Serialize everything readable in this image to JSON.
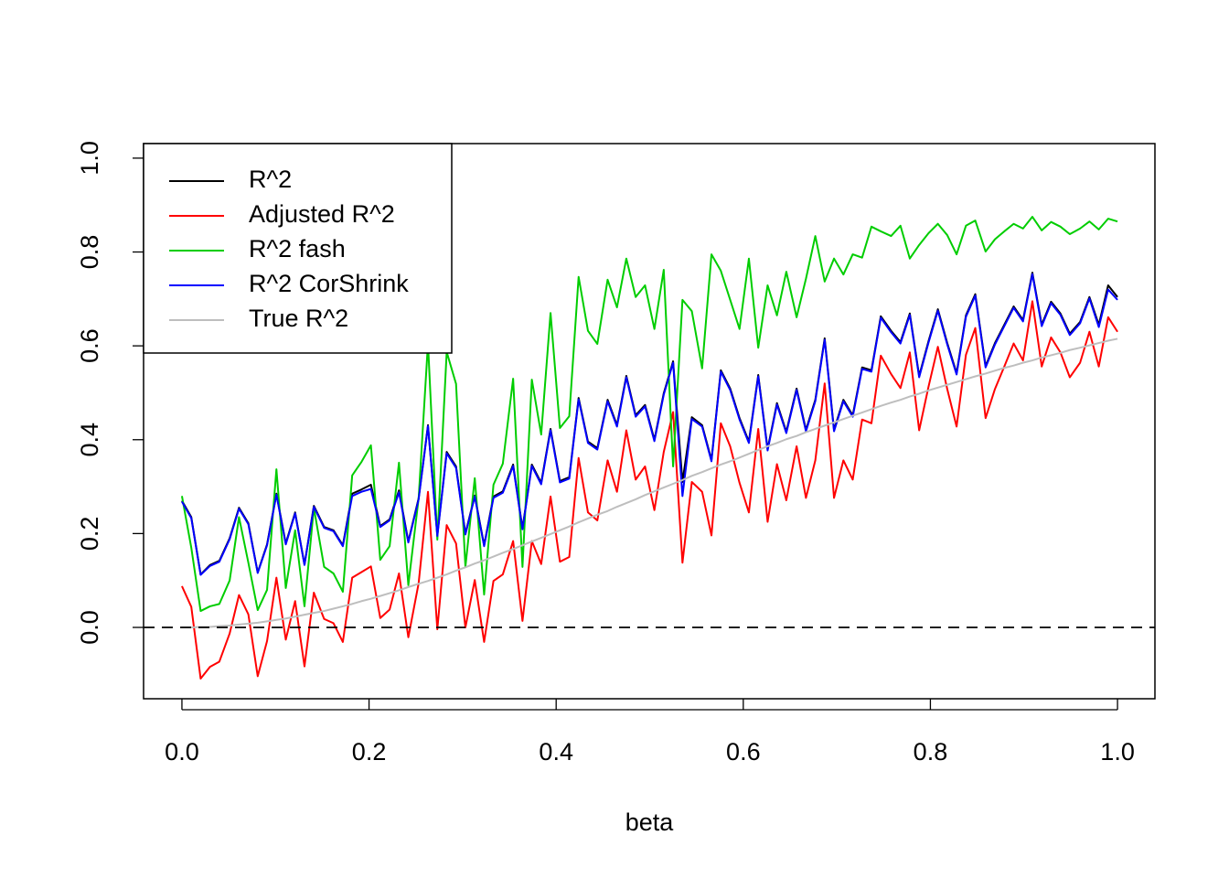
{
  "chart_data": {
    "type": "line",
    "xlabel": "beta",
    "x": [
      0,
      0.01,
      0.02,
      0.03,
      0.04,
      0.051,
      0.061,
      0.071,
      0.081,
      0.091,
      0.101,
      0.111,
      0.121,
      0.131,
      0.141,
      0.152,
      0.162,
      0.172,
      0.182,
      0.192,
      0.202,
      0.212,
      0.222,
      0.232,
      0.242,
      0.253,
      0.263,
      0.273,
      0.283,
      0.293,
      0.303,
      0.313,
      0.323,
      0.333,
      0.343,
      0.354,
      0.364,
      0.374,
      0.384,
      0.394,
      0.404,
      0.414,
      0.424,
      0.434,
      0.444,
      0.455,
      0.465,
      0.475,
      0.485,
      0.495,
      0.505,
      0.515,
      0.525,
      0.535,
      0.545,
      0.556,
      0.566,
      0.576,
      0.586,
      0.596,
      0.606,
      0.616,
      0.626,
      0.636,
      0.646,
      0.657,
      0.667,
      0.677,
      0.687,
      0.697,
      0.707,
      0.717,
      0.727,
      0.737,
      0.747,
      0.758,
      0.768,
      0.778,
      0.788,
      0.798,
      0.808,
      0.818,
      0.828,
      0.838,
      0.848,
      0.859,
      0.869,
      0.879,
      0.889,
      0.899,
      0.909,
      0.919,
      0.929,
      0.939,
      0.949,
      0.96,
      0.97,
      0.98,
      0.99,
      1
    ],
    "series": [
      {
        "name": "R^2",
        "color": "#000000",
        "values": [
          0.27,
          0.235,
          0.113,
          0.133,
          0.142,
          0.19,
          0.255,
          0.222,
          0.117,
          0.177,
          0.285,
          0.179,
          0.245,
          0.134,
          0.259,
          0.214,
          0.207,
          0.175,
          0.285,
          0.294,
          0.304,
          0.216,
          0.23,
          0.292,
          0.183,
          0.275,
          0.431,
          0.197,
          0.374,
          0.343,
          0.2,
          0.281,
          0.175,
          0.279,
          0.29,
          0.347,
          0.211,
          0.347,
          0.308,
          0.423,
          0.312,
          0.32,
          0.489,
          0.396,
          0.382,
          0.485,
          0.431,
          0.536,
          0.452,
          0.474,
          0.4,
          0.499,
          0.567,
          0.31,
          0.448,
          0.431,
          0.357,
          0.548,
          0.509,
          0.446,
          0.396,
          0.538,
          0.38,
          0.478,
          0.417,
          0.509,
          0.421,
          0.485,
          0.616,
          0.421,
          0.485,
          0.452,
          0.554,
          0.548,
          0.663,
          0.632,
          0.608,
          0.669,
          0.536,
          0.61,
          0.678,
          0.606,
          0.542,
          0.665,
          0.71,
          0.557,
          0.606,
          0.645,
          0.684,
          0.655,
          0.756,
          0.645,
          0.694,
          0.669,
          0.626,
          0.651,
          0.704,
          0.645,
          0.729,
          0.704
        ]
      },
      {
        "name": "Adjusted R^2",
        "color": "#ff0000",
        "values": [
          0.088,
          0.044,
          -0.109,
          -0.084,
          -0.073,
          -0.013,
          0.069,
          0.028,
          -0.104,
          -0.029,
          0.106,
          -0.026,
          0.056,
          -0.083,
          0.074,
          0.018,
          0.009,
          -0.031,
          0.106,
          0.118,
          0.13,
          0.02,
          0.038,
          0.115,
          -0.021,
          0.094,
          0.289,
          -0.004,
          0.218,
          0.179,
          0,
          0.101,
          -0.031,
          0.099,
          0.113,
          0.184,
          0.014,
          0.184,
          0.135,
          0.279,
          0.14,
          0.15,
          0.361,
          0.245,
          0.228,
          0.356,
          0.289,
          0.42,
          0.315,
          0.343,
          0.25,
          0.374,
          0.459,
          0.138,
          0.31,
          0.289,
          0.196,
          0.435,
          0.386,
          0.308,
          0.245,
          0.423,
          0.225,
          0.348,
          0.271,
          0.386,
          0.276,
          0.356,
          0.52,
          0.276,
          0.356,
          0.315,
          0.443,
          0.435,
          0.579,
          0.54,
          0.51,
          0.586,
          0.42,
          0.513,
          0.598,
          0.508,
          0.428,
          0.581,
          0.638,
          0.446,
          0.508,
          0.556,
          0.605,
          0.569,
          0.695,
          0.556,
          0.618,
          0.586,
          0.533,
          0.564,
          0.63,
          0.556,
          0.661,
          0.63
        ]
      },
      {
        "name": "R^2 fash",
        "color": "#00cd00",
        "values": [
          0.28,
          0.17,
          0.035,
          0.045,
          0.05,
          0.1,
          0.235,
          0.138,
          0.037,
          0.08,
          0.337,
          0.084,
          0.207,
          0.045,
          0.255,
          0.129,
          0.115,
          0.076,
          0.324,
          0.353,
          0.388,
          0.144,
          0.173,
          0.351,
          0.09,
          0.275,
          0.606,
          0.187,
          0.587,
          0.519,
          0.129,
          0.318,
          0.07,
          0.304,
          0.349,
          0.53,
          0.129,
          0.528,
          0.411,
          0.67,
          0.425,
          0.45,
          0.747,
          0.632,
          0.604,
          0.741,
          0.682,
          0.786,
          0.704,
          0.729,
          0.636,
          0.762,
          0.343,
          0.698,
          0.674,
          0.552,
          0.795,
          0.76,
          0.698,
          0.636,
          0.786,
          0.596,
          0.729,
          0.665,
          0.758,
          0.661,
          0.743,
          0.834,
          0.737,
          0.786,
          0.752,
          0.795,
          0.788,
          0.854,
          0.844,
          0.834,
          0.856,
          0.786,
          0.815,
          0.84,
          0.86,
          0.836,
          0.795,
          0.856,
          0.867,
          0.801,
          0.827,
          0.844,
          0.86,
          0.85,
          0.875,
          0.846,
          0.864,
          0.854,
          0.838,
          0.85,
          0.865,
          0.848,
          0.871,
          0.865
        ]
      },
      {
        "name": "R^2 CorShrink",
        "color": "#0000ff",
        "values": [
          0.268,
          0.233,
          0.112,
          0.131,
          0.14,
          0.188,
          0.253,
          0.22,
          0.116,
          0.175,
          0.283,
          0.177,
          0.243,
          0.133,
          0.257,
          0.212,
          0.205,
          0.173,
          0.28,
          0.289,
          0.295,
          0.214,
          0.228,
          0.288,
          0.181,
          0.273,
          0.429,
          0.195,
          0.371,
          0.34,
          0.198,
          0.279,
          0.173,
          0.276,
          0.287,
          0.344,
          0.209,
          0.344,
          0.305,
          0.42,
          0.309,
          0.317,
          0.486,
          0.393,
          0.379,
          0.482,
          0.428,
          0.533,
          0.449,
          0.471,
          0.397,
          0.496,
          0.564,
          0.28,
          0.444,
          0.428,
          0.354,
          0.545,
          0.506,
          0.443,
          0.393,
          0.535,
          0.377,
          0.475,
          0.414,
          0.506,
          0.418,
          0.482,
          0.613,
          0.418,
          0.482,
          0.449,
          0.551,
          0.545,
          0.66,
          0.629,
          0.605,
          0.666,
          0.533,
          0.607,
          0.675,
          0.603,
          0.539,
          0.662,
          0.707,
          0.554,
          0.603,
          0.642,
          0.681,
          0.652,
          0.753,
          0.642,
          0.691,
          0.666,
          0.623,
          0.648,
          0.701,
          0.64,
          0.72,
          0.698
        ]
      },
      {
        "name": "True R^2",
        "color": "#bebebe",
        "values": [
          0,
          0,
          0.001,
          0.001,
          0.003,
          0.004,
          0.006,
          0.008,
          0.01,
          0.013,
          0.016,
          0.019,
          0.023,
          0.027,
          0.031,
          0.035,
          0.04,
          0.045,
          0.05,
          0.056,
          0.061,
          0.067,
          0.073,
          0.079,
          0.086,
          0.093,
          0.099,
          0.106,
          0.113,
          0.121,
          0.128,
          0.136,
          0.143,
          0.151,
          0.159,
          0.167,
          0.175,
          0.183,
          0.191,
          0.199,
          0.207,
          0.215,
          0.224,
          0.232,
          0.24,
          0.248,
          0.257,
          0.265,
          0.273,
          0.282,
          0.29,
          0.298,
          0.306,
          0.314,
          0.323,
          0.331,
          0.339,
          0.347,
          0.354,
          0.362,
          0.37,
          0.378,
          0.386,
          0.393,
          0.401,
          0.408,
          0.416,
          0.423,
          0.43,
          0.437,
          0.444,
          0.451,
          0.458,
          0.465,
          0.472,
          0.479,
          0.485,
          0.492,
          0.498,
          0.505,
          0.511,
          0.517,
          0.523,
          0.529,
          0.535,
          0.541,
          0.547,
          0.553,
          0.558,
          0.564,
          0.569,
          0.575,
          0.58,
          0.585,
          0.591,
          0.596,
          0.601,
          0.606,
          0.611,
          0.615
        ]
      }
    ],
    "hline": 0,
    "xlim": [
      -0.041,
      1.04
    ],
    "ylim": [
      -0.152,
      1.031
    ],
    "xticks": [
      {
        "value": 0,
        "label": "0.0"
      },
      {
        "value": 0.2,
        "label": "0.2"
      },
      {
        "value": 0.4,
        "label": "0.4"
      },
      {
        "value": 0.6,
        "label": "0.6"
      },
      {
        "value": 0.8,
        "label": "0.8"
      },
      {
        "value": 1,
        "label": "1.0"
      }
    ],
    "yticks": [
      {
        "value": 0,
        "label": "0.0"
      },
      {
        "value": 0.2,
        "label": "0.2"
      },
      {
        "value": 0.4,
        "label": "0.4"
      },
      {
        "value": 0.6,
        "label": "0.6"
      },
      {
        "value": 0.8,
        "label": "0.8"
      },
      {
        "value": 1,
        "label": "1.0"
      }
    ],
    "legend": "topleft",
    "grid": false
  }
}
